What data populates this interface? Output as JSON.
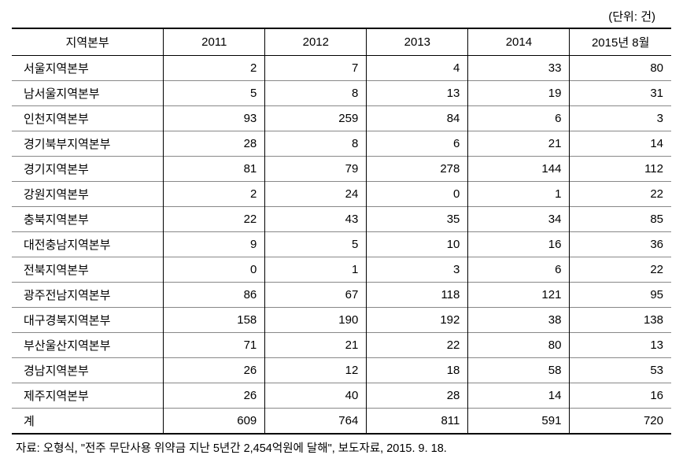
{
  "unit_label": "(단위: 건)",
  "table": {
    "columns": [
      "지역본부",
      "2011",
      "2012",
      "2013",
      "2014",
      "2015년 8월"
    ],
    "rows": [
      [
        "서울지역본부",
        "2",
        "7",
        "4",
        "33",
        "80"
      ],
      [
        "남서울지역본부",
        "5",
        "8",
        "13",
        "19",
        "31"
      ],
      [
        "인천지역본부",
        "93",
        "259",
        "84",
        "6",
        "3"
      ],
      [
        "경기북부지역본부",
        "28",
        "8",
        "6",
        "21",
        "14"
      ],
      [
        "경기지역본부",
        "81",
        "79",
        "278",
        "144",
        "112"
      ],
      [
        "강원지역본부",
        "2",
        "24",
        "0",
        "1",
        "22"
      ],
      [
        "충북지역본부",
        "22",
        "43",
        "35",
        "34",
        "85"
      ],
      [
        "대전충남지역본부",
        "9",
        "5",
        "10",
        "16",
        "36"
      ],
      [
        "전북지역본부",
        "0",
        "1",
        "3",
        "6",
        "22"
      ],
      [
        "광주전남지역본부",
        "86",
        "67",
        "118",
        "121",
        "95"
      ],
      [
        "대구경북지역본부",
        "158",
        "190",
        "192",
        "38",
        "138"
      ],
      [
        "부산울산지역본부",
        "71",
        "21",
        "22",
        "80",
        "13"
      ],
      [
        "경남지역본부",
        "26",
        "12",
        "18",
        "58",
        "53"
      ],
      [
        "제주지역본부",
        "26",
        "40",
        "28",
        "14",
        "16"
      ],
      [
        "계",
        "609",
        "764",
        "811",
        "591",
        "720"
      ]
    ],
    "column_widths": [
      "23%",
      "15.4%",
      "15.4%",
      "15.4%",
      "15.4%",
      "15.4%"
    ],
    "border_color": "#000000",
    "row_border_color": "#888888",
    "background_color": "#ffffff",
    "text_color": "#000000",
    "font_size": 15,
    "cell_number_align": "right",
    "cell_label_align": "left"
  },
  "source_note": "자료: 오형식, \"전주 무단사용 위약금 지난 5년간 2,454억원에 달해\", 보도자료, 2015. 9. 18."
}
